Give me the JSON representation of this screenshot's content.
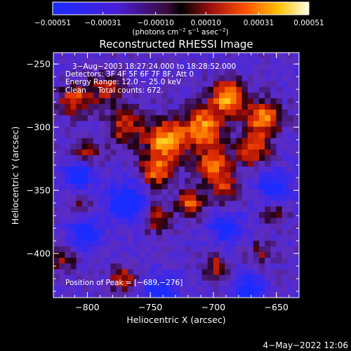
{
  "chart_data": {
    "type": "heatmap",
    "title": "Reconstructed RHESSI Image",
    "xlabel": "Heliocentric X (arcsec)",
    "ylabel": "Heliocentric Y (arcsec)",
    "xlim": [
      -827,
      -632
    ],
    "ylim": [
      -435,
      -241
    ],
    "x_ticks": [
      {
        "value": -800,
        "label": "−800"
      },
      {
        "value": -750,
        "label": "−750"
      },
      {
        "value": -700,
        "label": "−700"
      },
      {
        "value": -650,
        "label": "−650"
      }
    ],
    "y_ticks": [
      {
        "value": -250,
        "label": "−250"
      },
      {
        "value": -300,
        "label": "−300"
      },
      {
        "value": -350,
        "label": "−350"
      },
      {
        "value": -400,
        "label": "−400"
      }
    ],
    "colorbar": {
      "min": -0.00051,
      "max": 0.00051,
      "unit_prefix": "(photons cm",
      "unit_exp1": "−2",
      "unit_mid1": " s",
      "unit_exp2": "−1",
      "unit_mid2": " asec",
      "unit_exp3": "−2",
      "unit_suffix": ")",
      "ticks": [
        {
          "value": -0.00051,
          "label": "−0.00051"
        },
        {
          "value": -0.00031,
          "label": "−0.00031"
        },
        {
          "value": -0.0001,
          "label": "−0.00010"
        },
        {
          "value": 0.0001,
          "label": "0.00010"
        },
        {
          "value": 0.00031,
          "label": "0.00031"
        },
        {
          "value": 0.00051,
          "label": "0.00051"
        }
      ]
    },
    "annotations": [
      "3−Aug−2003 18:27:24.000 to 18:28:52.000",
      "Detectors: 3F 4F 5F 6F 7F 8F, Att 0",
      "Energy Range: 12.0 − 25.0 keV",
      "Clean     Total counts: 672.",
      "Position of Peak = [−689,−276]"
    ],
    "peak_position": [
      -689,
      -276
    ],
    "hotspots": [
      {
        "x": -688,
        "y": -276,
        "amp": 1.0,
        "r": 9
      },
      {
        "x": -660,
        "y": -293,
        "amp": 0.85,
        "r": 10
      },
      {
        "x": -708,
        "y": -300,
        "amp": 0.9,
        "r": 12
      },
      {
        "x": -738,
        "y": -310,
        "amp": 0.95,
        "r": 11
      },
      {
        "x": -770,
        "y": -300,
        "amp": 0.65,
        "r": 10
      },
      {
        "x": -745,
        "y": -335,
        "amp": 0.8,
        "r": 9
      },
      {
        "x": -700,
        "y": -330,
        "amp": 0.75,
        "r": 10
      },
      {
        "x": -668,
        "y": -318,
        "amp": 0.7,
        "r": 9
      },
      {
        "x": -810,
        "y": -278,
        "amp": 0.7,
        "r": 9
      },
      {
        "x": -785,
        "y": -270,
        "amp": 0.5,
        "r": 10
      },
      {
        "x": -718,
        "y": -360,
        "amp": 0.7,
        "r": 8
      },
      {
        "x": -690,
        "y": -350,
        "amp": 0.55,
        "r": 8
      },
      {
        "x": -745,
        "y": -372,
        "amp": 0.55,
        "r": 8
      },
      {
        "x": -800,
        "y": -320,
        "amp": 0.45,
        "r": 8
      },
      {
        "x": -772,
        "y": -420,
        "amp": 0.6,
        "r": 7
      },
      {
        "x": -820,
        "y": -405,
        "amp": 0.45,
        "r": 8
      },
      {
        "x": -698,
        "y": -410,
        "amp": 0.55,
        "r": 7
      },
      {
        "x": -662,
        "y": -400,
        "amp": 0.4,
        "r": 7
      },
      {
        "x": -652,
        "y": -370,
        "amp": 0.45,
        "r": 7
      },
      {
        "x": -805,
        "y": -358,
        "amp": 0.35,
        "r": 7
      }
    ],
    "coldspots": [
      {
        "x": -768,
        "y": -360,
        "amp": -0.85,
        "r": 10
      },
      {
        "x": -807,
        "y": -339,
        "amp": -0.7,
        "r": 8
      },
      {
        "x": -652,
        "y": -348,
        "amp": -0.6,
        "r": 9
      },
      {
        "x": -672,
        "y": -430,
        "amp": -0.7,
        "r": 8
      },
      {
        "x": -742,
        "y": -430,
        "amp": -0.55,
        "r": 9
      },
      {
        "x": -802,
        "y": -385,
        "amp": -0.6,
        "r": 9
      },
      {
        "x": -690,
        "y": -380,
        "amp": -0.55,
        "r": 9
      }
    ]
  },
  "footer": {
    "date": "4−May−2022 12:06"
  }
}
